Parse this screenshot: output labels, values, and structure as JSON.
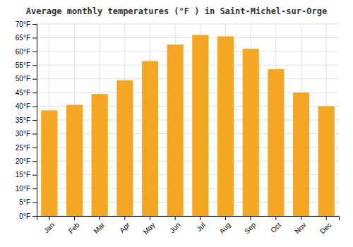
{
  "chart_data": {
    "type": "bar",
    "title": "Average monthly temperatures (°F ) in Saint-Michel-sur-Orge",
    "categories": [
      "Jan",
      "Feb",
      "Mar",
      "Apr",
      "May",
      "Jun",
      "Jul",
      "Aug",
      "Sep",
      "Oct",
      "Nov",
      "Dec"
    ],
    "values": [
      38.5,
      40.5,
      44.5,
      49.5,
      56.5,
      62.5,
      66.0,
      65.5,
      61.0,
      53.5,
      45.0,
      40.0
    ],
    "color": "#F5A623",
    "ylim": [
      0,
      70
    ],
    "yticks": [
      {
        "value": 0,
        "label": "0°F"
      },
      {
        "value": 5,
        "label": "5°F"
      },
      {
        "value": 10,
        "label": "10°F"
      },
      {
        "value": 15,
        "label": "15°F"
      },
      {
        "value": 20,
        "label": "20°F"
      },
      {
        "value": 25,
        "label": "25°F"
      },
      {
        "value": 30,
        "label": "30°F"
      },
      {
        "value": 35,
        "label": "35°F"
      },
      {
        "value": 40,
        "label": "40°F"
      },
      {
        "value": 45,
        "label": "45°F"
      },
      {
        "value": 50,
        "label": "50°F"
      },
      {
        "value": 55,
        "label": "55°F"
      },
      {
        "value": 60,
        "label": "60°F"
      },
      {
        "value": 65,
        "label": "65°F"
      },
      {
        "value": 70,
        "label": "70°F"
      }
    ],
    "grid": true
  }
}
